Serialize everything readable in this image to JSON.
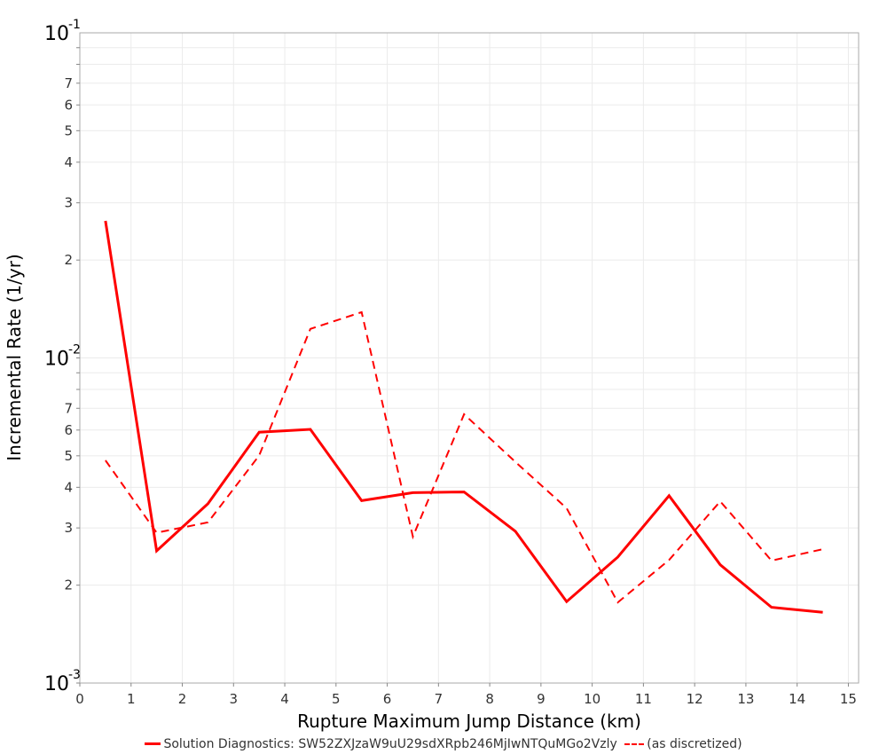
{
  "chart_data": {
    "type": "line",
    "title": "",
    "xlabel": "Rupture Maximum Jump Distance (km)",
    "ylabel": "Incremental Rate (1/yr)",
    "xlim": [
      0,
      15.2
    ],
    "ylim": [
      0.001,
      0.1
    ],
    "yscale": "log",
    "grid": true,
    "legend_position": "bottom",
    "x_ticks": [
      "0",
      "1",
      "2",
      "3",
      "4",
      "5",
      "6",
      "7",
      "8",
      "9",
      "10",
      "11",
      "12",
      "13",
      "14",
      "15"
    ],
    "y_decade_ticks": [
      {
        "base": "10",
        "exp": "-1"
      },
      {
        "base": "10",
        "exp": "-2"
      },
      {
        "base": "10",
        "exp": "-3"
      }
    ],
    "y_minor_ticks_labeled": [
      "2",
      "3",
      "4",
      "5",
      "6",
      "7"
    ],
    "x": [
      0.5,
      1.5,
      2.5,
      3.5,
      4.5,
      5.5,
      6.5,
      7.5,
      8.5,
      9.5,
      10.5,
      11.5,
      12.5,
      13.5,
      14.5
    ],
    "series": [
      {
        "name": "Solution Diagnostics: SW52ZXJzaW9uU29sdXRpb246MjIwNTQuMGo2Vzly",
        "style": "solid",
        "color": "#ff0000",
        "values": [
          0.0264,
          0.00255,
          0.00356,
          0.00591,
          0.00603,
          0.00364,
          0.00385,
          0.00387,
          0.00293,
          0.00178,
          0.00244,
          0.00377,
          0.00231,
          0.00171,
          0.00165
        ]
      },
      {
        "name": "(as discretized)",
        "style": "dashed",
        "color": "#ff0000",
        "values": [
          0.00484,
          0.0029,
          0.00312,
          0.00501,
          0.01228,
          0.01383,
          0.00282,
          0.00671,
          0.00479,
          0.00345,
          0.00177,
          0.00239,
          0.00362,
          0.00238,
          0.00258
        ]
      }
    ]
  },
  "legend": {
    "items": [
      {
        "label": "Solution Diagnostics: SW52ZXJzaW9uU29sdXRpb246MjIwNTQuMGo2Vzly"
      },
      {
        "label": "(as discretized)"
      }
    ]
  }
}
